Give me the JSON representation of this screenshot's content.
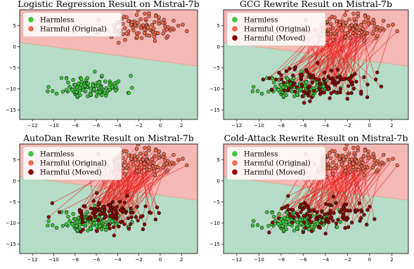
{
  "chart_data": [
    {
      "type": "scatter",
      "title": "Logistic Regression Result on Mistral-7b",
      "xlabel": "",
      "ylabel": "",
      "xlim": [
        -13.2,
        3.5
      ],
      "ylim": [
        -17.2,
        8.7
      ],
      "xticks": [
        -12,
        -10,
        -8,
        -6,
        -4,
        -2,
        0,
        2
      ],
      "yticks": [
        5,
        0,
        -5,
        -10,
        -15
      ],
      "boundary": {
        "left_y": 1.0,
        "right_y": -4.6
      },
      "regions": {
        "upper": "#f4b8b5",
        "lower": "#b5dcc6"
      },
      "legend": {
        "placement": "top-left",
        "entries": [
          "Harmless",
          "Harmful (Original)"
        ]
      },
      "series": [
        {
          "name": "Harmless",
          "color": "#3cc83a",
          "gen": {
            "cx": -6.5,
            "cy": -9.6,
            "sx": 1.9,
            "sy": 1.6,
            "n": 110,
            "seed": 11
          }
        },
        {
          "name": "Harmful (Original)",
          "color": "#f46a4c",
          "gen": {
            "cx": -2.0,
            "cy": 4.4,
            "sx": 2.1,
            "sy": 1.6,
            "n": 110,
            "seed": 23
          }
        }
      ]
    },
    {
      "type": "scatter",
      "title": "GCG Rewrite Result on Mistral-7b",
      "xlabel": "",
      "ylabel": "",
      "xlim": [
        -13.2,
        3.5
      ],
      "ylim": [
        -17.2,
        8.7
      ],
      "xticks": [
        -12,
        -10,
        -8,
        -6,
        -4,
        -2,
        0,
        2
      ],
      "yticks": [
        5,
        0,
        -5,
        -10,
        -15
      ],
      "boundary": {
        "left_y": 1.0,
        "right_y": -4.6
      },
      "regions": {
        "upper": "#f4b8b5",
        "lower": "#b5dcc6"
      },
      "legend": {
        "placement": "top-left",
        "entries": [
          "Harmless",
          "Harmful (Original)",
          "Harmful (Moved)"
        ]
      },
      "series": [
        {
          "name": "Harmless",
          "color": "#3cc83a",
          "gen": {
            "cx": -6.5,
            "cy": -9.6,
            "sx": 1.9,
            "sy": 1.6,
            "n": 110,
            "seed": 11
          }
        },
        {
          "name": "Harmful (Original)",
          "color": "#f46a4c",
          "gen": {
            "cx": -2.0,
            "cy": 4.4,
            "sx": 2.1,
            "sy": 1.6,
            "n": 110,
            "seed": 23
          }
        },
        {
          "name": "Harmful (Moved)",
          "color": "#8b0000",
          "gen": {
            "cx": -4.2,
            "cy": -8.6,
            "sx": 2.7,
            "sy": 2.3,
            "n": 110,
            "seed": 37
          }
        }
      ]
    },
    {
      "type": "scatter",
      "title": "AutoDan Rewrite Result on Mistral-7b",
      "xlabel": "",
      "ylabel": "",
      "xlim": [
        -13.2,
        3.5
      ],
      "ylim": [
        -17.2,
        8.7
      ],
      "xticks": [
        -12,
        -10,
        -8,
        -6,
        -4,
        -2,
        0,
        2
      ],
      "yticks": [
        5,
        0,
        -5,
        -10,
        -15
      ],
      "boundary": {
        "left_y": 1.0,
        "right_y": -4.6
      },
      "regions": {
        "upper": "#f4b8b5",
        "lower": "#b5dcc6"
      },
      "legend": {
        "placement": "top-left",
        "entries": [
          "Harmless",
          "Harmful (Original)",
          "Harmful (Moved)"
        ]
      },
      "series": [
        {
          "name": "Harmless",
          "color": "#3cc83a",
          "gen": {
            "cx": -6.5,
            "cy": -9.6,
            "sx": 1.9,
            "sy": 1.6,
            "n": 110,
            "seed": 11
          }
        },
        {
          "name": "Harmful (Original)",
          "color": "#f46a4c",
          "gen": {
            "cx": -2.0,
            "cy": 4.4,
            "sx": 2.1,
            "sy": 1.6,
            "n": 110,
            "seed": 23
          }
        },
        {
          "name": "Harmful (Moved)",
          "color": "#8b0000",
          "gen": {
            "cx": -4.6,
            "cy": -7.6,
            "sx": 2.6,
            "sy": 2.2,
            "n": 110,
            "seed": 53
          }
        }
      ]
    },
    {
      "type": "scatter",
      "title": "Cold-Attack Rewrite Result on Mistral-7b",
      "xlabel": "",
      "ylabel": "",
      "xlim": [
        -13.2,
        3.5
      ],
      "ylim": [
        -17.2,
        8.7
      ],
      "xticks": [
        -12,
        -10,
        -8,
        -6,
        -4,
        -2,
        0,
        2
      ],
      "yticks": [
        5,
        0,
        -5,
        -10,
        -15
      ],
      "boundary": {
        "left_y": 1.0,
        "right_y": -4.6
      },
      "regions": {
        "upper": "#f4b8b5",
        "lower": "#b5dcc6"
      },
      "legend": {
        "placement": "top-left",
        "entries": [
          "Harmless",
          "Harmful (Original)",
          "Harmful (Moved)"
        ]
      },
      "series": [
        {
          "name": "Harmless",
          "color": "#3cc83a",
          "gen": {
            "cx": -6.5,
            "cy": -9.6,
            "sx": 1.9,
            "sy": 1.6,
            "n": 110,
            "seed": 11
          }
        },
        {
          "name": "Harmful (Original)",
          "color": "#f46a4c",
          "gen": {
            "cx": -2.0,
            "cy": 4.4,
            "sx": 2.1,
            "sy": 1.6,
            "n": 110,
            "seed": 23
          }
        },
        {
          "name": "Harmful (Moved)",
          "color": "#8b0000",
          "gen": {
            "cx": -4.0,
            "cy": -8.2,
            "sx": 2.8,
            "sy": 2.3,
            "n": 110,
            "seed": 71
          }
        }
      ]
    }
  ]
}
